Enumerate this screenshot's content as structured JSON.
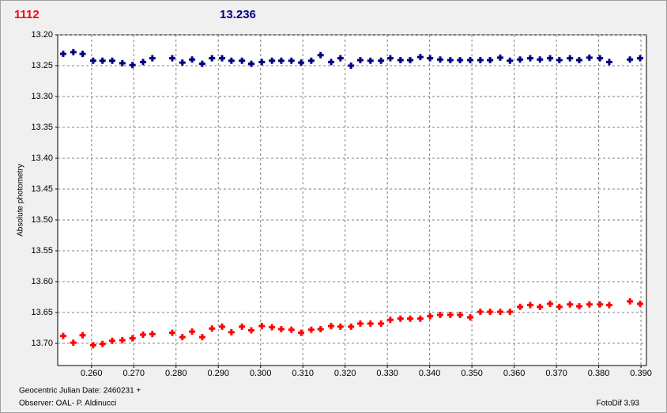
{
  "chart_data": {
    "type": "scatter",
    "y_label": "Absolute photometry",
    "x_label": "Geocentric Julian Date: 2460231 +",
    "observer": "Observer: OAL- P. Aldinucci",
    "software": "FotoDif 3.93",
    "x": [
      0.2533,
      0.2557,
      0.2579,
      0.2604,
      0.2626,
      0.2649,
      0.2673,
      0.2697,
      0.2722,
      0.2744,
      0.2791,
      0.2815,
      0.2838,
      0.2862,
      0.2885,
      0.2909,
      0.2931,
      0.2956,
      0.2978,
      0.3003,
      0.3027,
      0.3049,
      0.3073,
      0.3096,
      0.312,
      0.3142,
      0.3167,
      0.3189,
      0.3214,
      0.3236,
      0.326,
      0.3285,
      0.3307,
      0.3331,
      0.3354,
      0.3378,
      0.3401,
      0.3425,
      0.3449,
      0.3472,
      0.3496,
      0.352,
      0.3543,
      0.3567,
      0.359,
      0.3614,
      0.3638,
      0.3661,
      0.3685,
      0.3707,
      0.3732,
      0.3754,
      0.3778,
      0.3803,
      0.3825,
      0.3874,
      0.3898
    ],
    "series": [
      {
        "name": "1112",
        "color": "#ff0000",
        "values": [
          13.688,
          13.699,
          13.687,
          13.703,
          13.701,
          13.696,
          13.695,
          13.692,
          13.686,
          13.685,
          13.683,
          13.69,
          13.681,
          13.69,
          13.676,
          13.673,
          13.682,
          13.673,
          13.679,
          13.672,
          13.674,
          13.677,
          13.678,
          13.683,
          13.678,
          13.677,
          13.672,
          13.673,
          13.673,
          13.668,
          13.668,
          13.668,
          13.662,
          13.66,
          13.66,
          13.66,
          13.656,
          13.654,
          13.654,
          13.654,
          13.658,
          13.649,
          13.649,
          13.649,
          13.649,
          13.641,
          13.638,
          13.641,
          13.636,
          13.641,
          13.637,
          13.64,
          13.637,
          13.637,
          13.638,
          13.632,
          13.636
        ]
      },
      {
        "name": "13.236",
        "color": "#000080",
        "values": [
          13.231,
          13.228,
          13.231,
          13.242,
          13.242,
          13.242,
          13.246,
          13.249,
          13.244,
          13.238,
          13.238,
          13.245,
          13.24,
          13.247,
          13.238,
          13.238,
          13.242,
          13.242,
          13.247,
          13.244,
          13.242,
          13.242,
          13.242,
          13.245,
          13.242,
          13.233,
          13.244,
          13.238,
          13.25,
          13.241,
          13.242,
          13.242,
          13.238,
          13.241,
          13.241,
          13.236,
          13.238,
          13.24,
          13.241,
          13.241,
          13.241,
          13.241,
          13.241,
          13.237,
          13.242,
          13.24,
          13.238,
          13.24,
          13.238,
          13.241,
          13.238,
          13.241,
          13.237,
          13.238,
          13.244,
          13.24,
          13.238
        ]
      }
    ],
    "xlim": [
      0.252,
      0.3913
    ],
    "xticks": [
      {
        "value": 0.26,
        "label": "0.260"
      },
      {
        "value": 0.27,
        "label": "0.270"
      },
      {
        "value": 0.28,
        "label": "0.280"
      },
      {
        "value": 0.29,
        "label": "0.290"
      },
      {
        "value": 0.3,
        "label": "0.300"
      },
      {
        "value": 0.31,
        "label": "0.310"
      },
      {
        "value": 0.32,
        "label": "0.320"
      },
      {
        "value": 0.33,
        "label": "0.330"
      },
      {
        "value": 0.34,
        "label": "0.340"
      },
      {
        "value": 0.35,
        "label": "0.350"
      },
      {
        "value": 0.36,
        "label": "0.360"
      },
      {
        "value": 0.37,
        "label": "0.370"
      },
      {
        "value": 0.38,
        "label": "0.380"
      },
      {
        "value": 0.39,
        "label": "0.390"
      }
    ],
    "ylim": [
      13.2,
      13.736
    ],
    "y_inverted": true,
    "yticks": [
      {
        "value": 13.2,
        "label": "13.20"
      },
      13.25,
      {
        "value": 13.3,
        "label": "13.30"
      },
      13.35,
      {
        "value": 13.4,
        "label": "13.40"
      },
      13.45,
      {
        "value": 13.5,
        "label": "13.50"
      },
      13.55,
      {
        "value": 13.6,
        "label": "13.60"
      },
      13.65,
      {
        "value": 13.7,
        "label": "13.70"
      }
    ],
    "grid": true
  }
}
